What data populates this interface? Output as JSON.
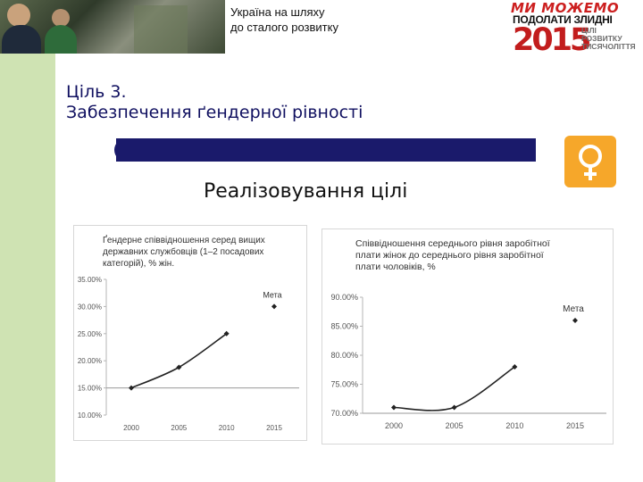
{
  "header": {
    "line1": "Україна на шляху",
    "line2": "до сталого розвитку"
  },
  "logo": {
    "tagline": "МИ МОЖЕМО",
    "line2": "ПОДОЛАТИ ЗЛИДНІ",
    "year": "2015",
    "goals": [
      "ЦІЛІ",
      "РОЗВИТКУ",
      "ТИСЯЧОЛІТТЯ"
    ]
  },
  "goal": {
    "line1": "Ціль 3.",
    "line2": "Забезпечення ґендерної рівності"
  },
  "subtitle": "Реалізовування цілі",
  "colors": {
    "accent_bar": "#1a1a6b",
    "badge": "#f6a72a",
    "left_strip": "#cfe3b3",
    "line": "#222222"
  },
  "chart_data": [
    {
      "type": "line",
      "title": "Ґендерне співвідношення серед вищих державних службовців (1–2 посадових категорій), % жін.",
      "x": [
        "2000",
        "2005",
        "2010",
        "2015"
      ],
      "series": [
        {
          "values": [
            15,
            18.8,
            25,
            null
          ]
        }
      ],
      "target": {
        "label": "Мета",
        "x": "2015",
        "value": 30
      },
      "yticks": [
        "10.00%",
        "15.00%",
        "20.00%",
        "25.00%",
        "30.00%",
        "35.00%"
      ],
      "ylim": [
        10,
        35
      ],
      "reference_line": 15
    },
    {
      "type": "line",
      "title": "Співвідношення середнього рівня заробітної плати жінок до середнього рівня заробітної плати чоловіків, %",
      "x": [
        "2000",
        "2005",
        "2010",
        "2015"
      ],
      "series": [
        {
          "values": [
            71,
            71,
            78,
            null
          ]
        }
      ],
      "target": {
        "label": "Мета",
        "x": "2015",
        "value": 86
      },
      "yticks": [
        "70.00%",
        "75.00%",
        "80.00%",
        "85.00%",
        "90.00%"
      ],
      "ylim": [
        70,
        90
      ],
      "reference_line": 70
    }
  ]
}
